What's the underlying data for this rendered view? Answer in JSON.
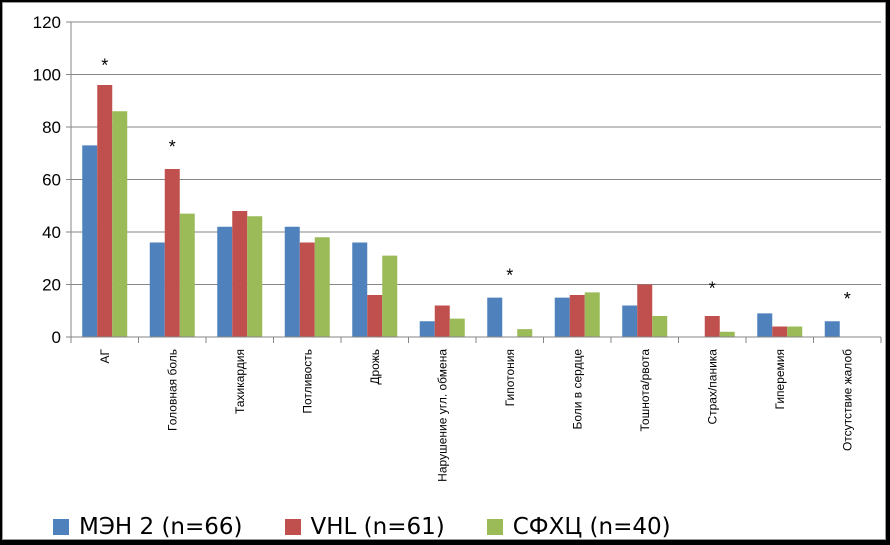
{
  "chart_data": {
    "type": "bar",
    "title": "",
    "xlabel": "",
    "ylabel": "",
    "ylim": [
      0,
      120
    ],
    "yticks": [
      0,
      20,
      40,
      60,
      80,
      100,
      120
    ],
    "grid": true,
    "legend_position": "bottom",
    "categories": [
      "АГ",
      "Головная боль",
      "Тахикардия",
      "Потливость",
      "Дрожь",
      "Нарушение угл. обмена",
      "Гипотония",
      "Боли в сердце",
      "Тошнота/рвота",
      "Страх/паника",
      "Гиперемия",
      "Отсутствие жалоб"
    ],
    "series": [
      {
        "name": "МЭН 2 (n=66)",
        "color": "#4f81bd",
        "values": [
          73,
          36,
          42,
          42,
          36,
          6,
          15,
          15,
          12,
          0,
          9,
          6
        ]
      },
      {
        "name": "VHL (n=61)",
        "color": "#c0504d",
        "values": [
          96,
          64,
          48,
          36,
          16,
          12,
          0,
          16,
          20,
          8,
          4,
          0
        ]
      },
      {
        "name": "СФХЦ (n=40)",
        "color": "#9bbb59",
        "values": [
          86,
          47,
          46,
          38,
          31,
          7,
          3,
          17,
          8,
          2,
          4,
          0
        ]
      }
    ],
    "annotations": [
      {
        "category_index": 0,
        "text": "*",
        "y": 105
      },
      {
        "category_index": 1,
        "text": "*",
        "y": 74
      },
      {
        "category_index": 6,
        "text": "*",
        "y": 25
      },
      {
        "category_index": 9,
        "text": "*",
        "y": 20
      },
      {
        "category_index": 11,
        "text": "*",
        "y": 16
      }
    ]
  }
}
